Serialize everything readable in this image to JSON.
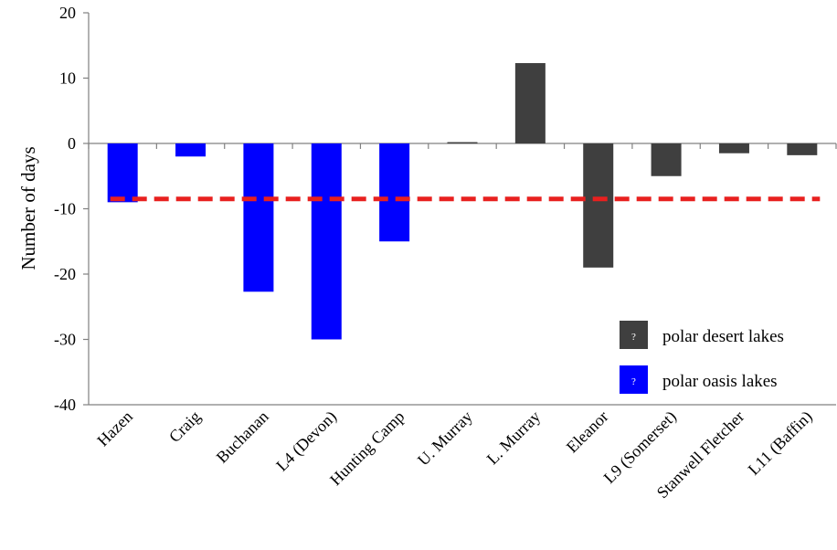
{
  "chart_data": {
    "type": "bar",
    "title": "",
    "xlabel": "",
    "ylabel": "Number of days",
    "ylim": [
      -40,
      20
    ],
    "yticks": [
      20,
      10,
      0,
      -10,
      -20,
      -30,
      -40
    ],
    "categories": [
      "Hazen",
      "Craig",
      "Buchanan",
      "L4 (Devon)",
      "Hunting Camp",
      "U. Murray",
      "L. Murray",
      "Eleanor",
      "L9 (Somerset)",
      "Stanwell Fletcher",
      "L11 (Baffin)"
    ],
    "values": [
      -9,
      -2,
      -22.7,
      -30,
      -15,
      0.2,
      12.3,
      -19,
      -5,
      -1.5,
      -1.8
    ],
    "groups": [
      "oasis",
      "oasis",
      "oasis",
      "oasis",
      "oasis",
      "desert",
      "desert",
      "desert",
      "desert",
      "desert",
      "desert"
    ],
    "mean_line": {
      "value": -8.5,
      "style": "dashed",
      "color": "#e8201f"
    },
    "colors": {
      "oasis": "#0000ff",
      "desert": "#3f3f3f",
      "axis": "#808080"
    },
    "legend": {
      "placement": "bottom-right",
      "items": [
        {
          "label": "polar desert lakes",
          "group": "desert",
          "marker_glyph": "?"
        },
        {
          "label": "polar oasis lakes",
          "group": "oasis",
          "marker_glyph": "?"
        }
      ]
    },
    "grid": false
  }
}
